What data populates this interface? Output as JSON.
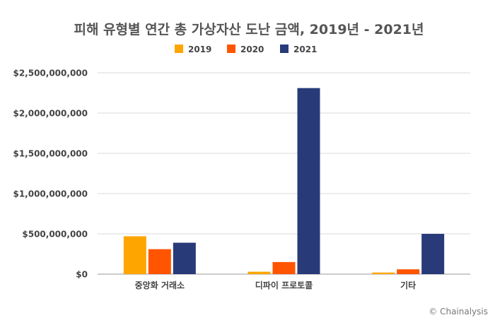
{
  "chart_data": {
    "type": "bar",
    "title": "피해 유형별 연간 총 가상자산 도난 금액, 2019년 - 2021년",
    "categories": [
      "중앙화 거래소",
      "디파이 프로토콜",
      "기타"
    ],
    "series": [
      {
        "name": "2019",
        "color": "#FFA500",
        "values": [
          470000000,
          30000000,
          20000000
        ]
      },
      {
        "name": "2020",
        "color": "#FF5500",
        "values": [
          310000000,
          150000000,
          60000000
        ]
      },
      {
        "name": "2021",
        "color": "#283A78",
        "values": [
          390000000,
          2310000000,
          500000000
        ]
      }
    ],
    "y_ticks": [
      0,
      500000000,
      1000000000,
      1500000000,
      2000000000,
      2500000000
    ],
    "y_tick_labels": [
      "$0",
      "$500,000,000",
      "$1,000,000,000",
      "$1,500,000,000",
      "$2,000,000,000",
      "$2,500,000,000"
    ],
    "ylim": [
      0,
      2500000000
    ],
    "xlabel": "",
    "ylabel": "",
    "grid": true,
    "legend_position": "top-center",
    "source": "© Chainalysis"
  }
}
